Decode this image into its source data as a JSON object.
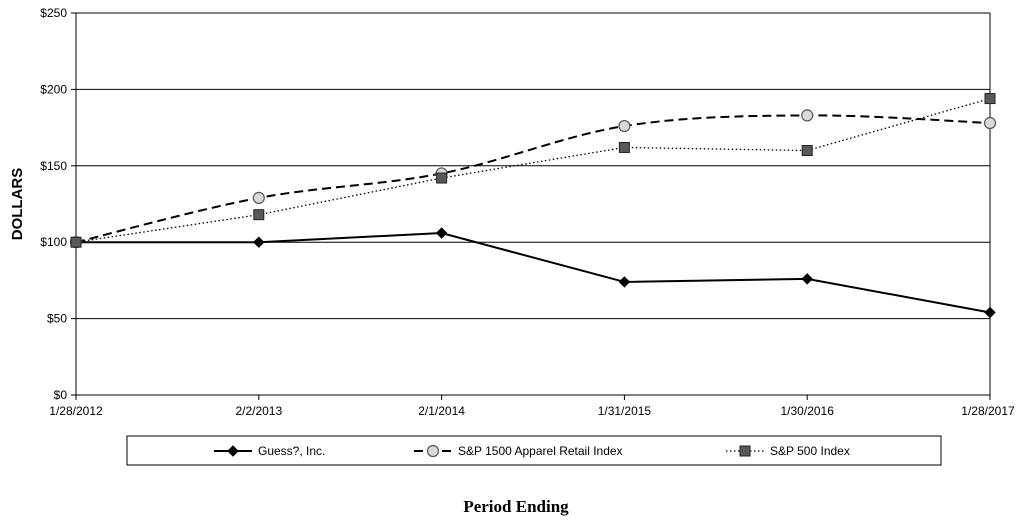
{
  "chart_data": {
    "type": "line",
    "title": "",
    "xlabel": "Period Ending",
    "ylabel": "DOLLARS",
    "categories": [
      "1/28/2012",
      "2/2/2013",
      "2/1/2014",
      "1/31/2015",
      "1/30/2016",
      "1/28/2017"
    ],
    "yticks": [
      "$0",
      "$50",
      "$100",
      "$150",
      "$200",
      "$250"
    ],
    "ylim": [
      0,
      250
    ],
    "grid": "horizontal",
    "legend_position": "bottom",
    "series": [
      {
        "name": "Guess?, Inc.",
        "values": [
          100,
          100,
          106,
          74,
          76,
          54
        ],
        "marker": "diamond",
        "line": "solid",
        "color": "#000000"
      },
      {
        "name": "S&P 1500 Apparel Retail Index",
        "values": [
          100,
          129,
          145,
          176,
          183,
          178
        ],
        "marker": "circle",
        "line": "dashed",
        "color": "#000000",
        "marker_fill": "#d9d9d9"
      },
      {
        "name": "S&P 500 Index",
        "values": [
          100,
          118,
          142,
          162,
          160,
          194
        ],
        "marker": "square",
        "line": "dotted",
        "color": "#000000",
        "marker_fill": "#595959"
      }
    ]
  }
}
